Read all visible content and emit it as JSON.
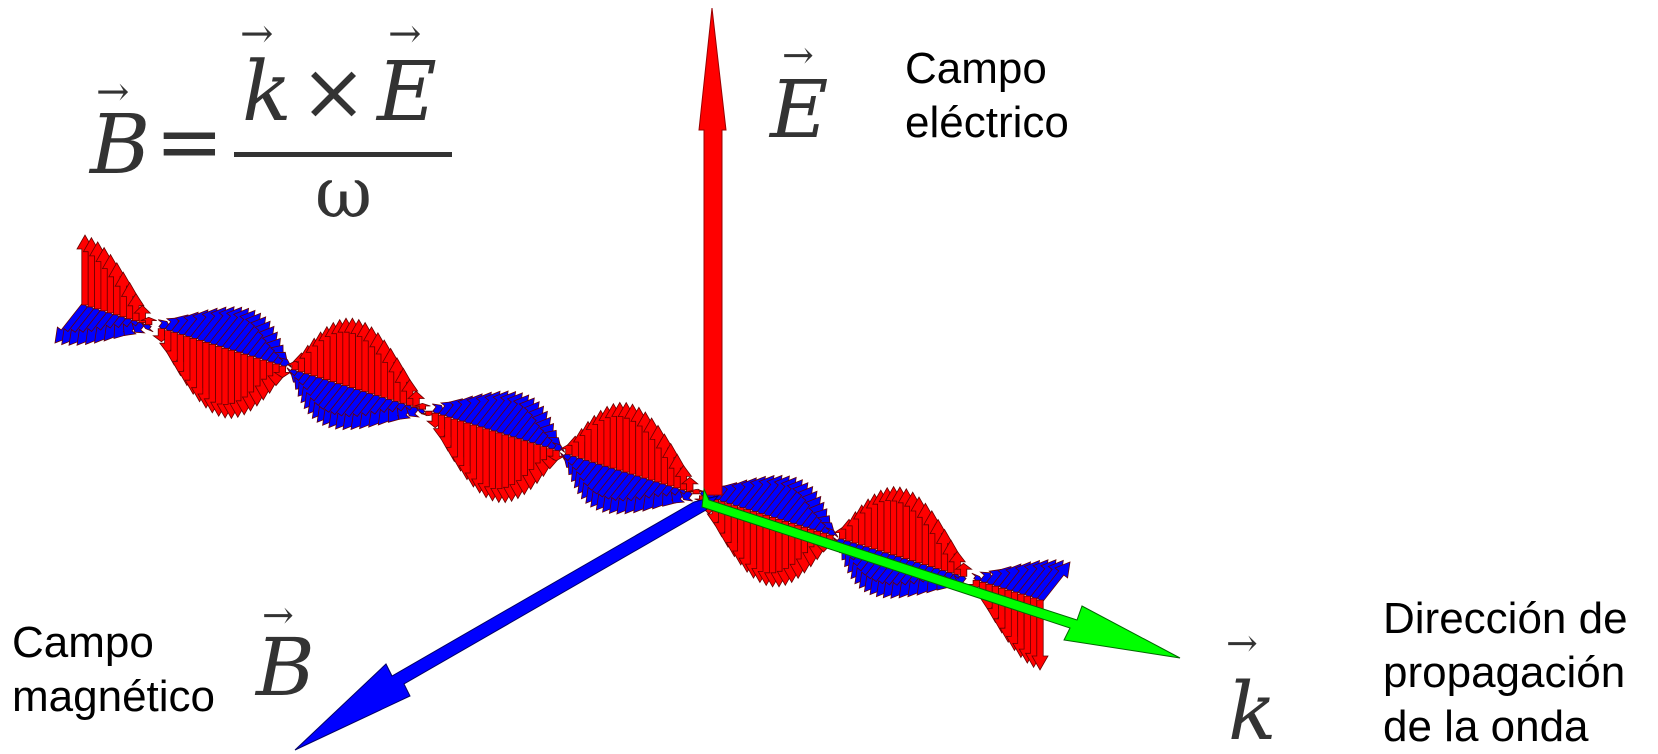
{
  "formula": {
    "lhs": "B",
    "equals": "=",
    "num_left": "k",
    "times": "×",
    "num_right": "E",
    "den": "ω"
  },
  "axes": {
    "E": {
      "symbol": "E",
      "label_lines": [
        "Campo",
        "eléctrico"
      ],
      "color": "#ff0000"
    },
    "B": {
      "symbol": "B",
      "label_lines": [
        "Campo",
        "magnético"
      ],
      "color": "#0000ff"
    },
    "k": {
      "symbol": "k",
      "label_lines": [
        "Dirección de",
        "propagación",
        "de la onda"
      ],
      "color": "#00ff00"
    }
  },
  "wave": {
    "e_color": "#ff0000",
    "b_color": "#0000ff",
    "outline": "#660000"
  }
}
